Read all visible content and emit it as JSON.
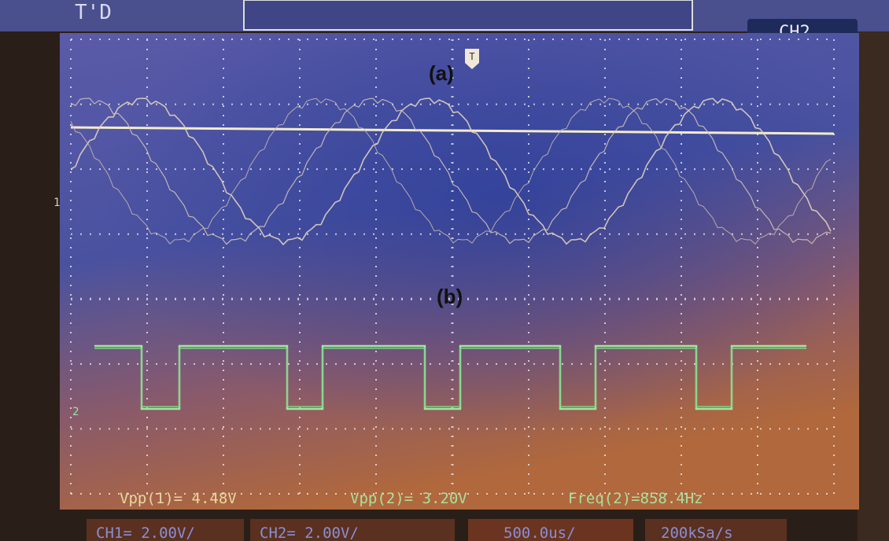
{
  "screen": {
    "top_left_label": "T'D",
    "trigger_badge": "CH2",
    "trigger_marker": "T",
    "channel_markers": [
      "1",
      "2"
    ],
    "annotations": [
      "(a)",
      "(b)"
    ],
    "measurements": [
      "Vpp(1)= 4.48V",
      "Vpp(2)= 3.20V",
      "Freq(2)=858.4Hz"
    ],
    "status_bar": [
      "CH1= 2.00V/",
      "CH2= 2.00V/",
      "500.0us/",
      "200kSa/s"
    ]
  }
}
